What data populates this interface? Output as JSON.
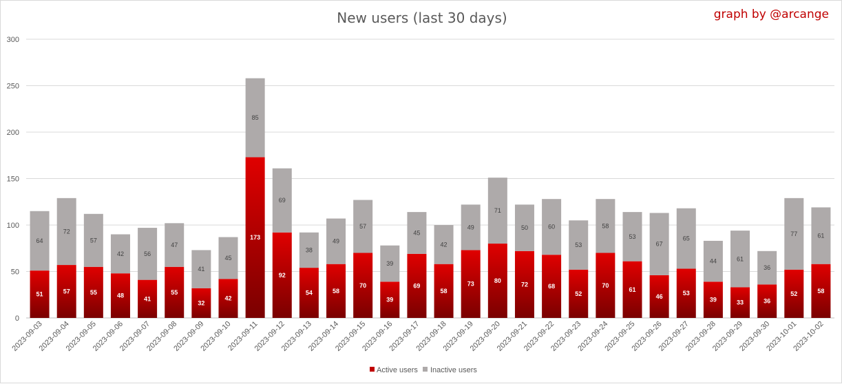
{
  "chart_data": {
    "type": "bar",
    "stacked": true,
    "title": "New users (last 30 days)",
    "credit": "graph by @arcange",
    "categories": [
      "2023-09-03",
      "2023-09-04",
      "2023-09-05",
      "2023-09-06",
      "2023-09-07",
      "2023-09-08",
      "2023-09-09",
      "2023-09-10",
      "2023-09-11",
      "2023-09-12",
      "2023-09-13",
      "2023-09-14",
      "2023-09-15",
      "2023-09-16",
      "2023-09-17",
      "2023-09-18",
      "2023-09-19",
      "2023-09-20",
      "2023-09-21",
      "2023-09-22",
      "2023-09-23",
      "2023-09-24",
      "2023-09-25",
      "2023-09-26",
      "2023-09-27",
      "2023-09-28",
      "2023-09-29",
      "2023-09-30",
      "2023-10-01",
      "2023-10-02"
    ],
    "series": [
      {
        "name": "Active users",
        "color": "#c00000",
        "values": [
          51,
          57,
          55,
          48,
          41,
          55,
          32,
          42,
          173,
          92,
          54,
          58,
          70,
          39,
          69,
          58,
          73,
          80,
          72,
          68,
          52,
          70,
          61,
          46,
          53,
          39,
          33,
          36,
          52,
          58
        ]
      },
      {
        "name": "Inactive users",
        "color": "#aeaaaa",
        "values": [
          64,
          72,
          57,
          42,
          56,
          47,
          41,
          45,
          85,
          69,
          38,
          49,
          57,
          39,
          45,
          42,
          49,
          71,
          50,
          60,
          53,
          58,
          53,
          67,
          65,
          44,
          61,
          36,
          77,
          61
        ]
      }
    ],
    "ylim": [
      0,
      300
    ],
    "yticks": [
      0,
      50,
      100,
      150,
      200,
      250,
      300
    ],
    "grid": true,
    "legend": "bottom-center"
  }
}
